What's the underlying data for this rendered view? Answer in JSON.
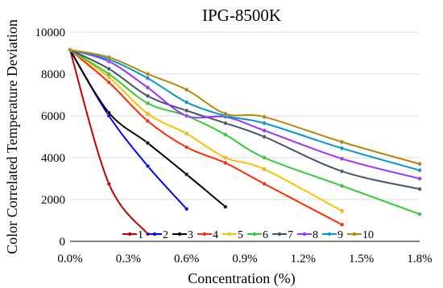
{
  "chart_data": {
    "type": "line",
    "title": "IPG-8500K",
    "xlabel": "Concentration (%)",
    "ylabel": "Color Correlated Temperature Deviation",
    "xlim": [
      0,
      1.8
    ],
    "ylim": [
      0,
      10000
    ],
    "x_ticks": [
      0,
      0.3,
      0.6,
      0.9,
      1.2,
      1.5,
      1.8
    ],
    "x_tick_labels": [
      "0.0%",
      "0.3%",
      "0.6%",
      "0.9%",
      "1.2%",
      "1.5%",
      "1.8%"
    ],
    "y_ticks": [
      0,
      2000,
      4000,
      6000,
      8000,
      10000
    ],
    "y_tick_labels": [
      "0",
      "2000",
      "4000",
      "6000",
      "8000",
      "10000"
    ],
    "grid": "horizontal",
    "legend_position": "bottom-inside",
    "series": [
      {
        "name": "1",
        "color": "#c00000",
        "x": [
          0,
          0.2,
          0.4
        ],
        "y": [
          9150,
          2750,
          350
        ]
      },
      {
        "name": "2",
        "color": "#0000ff",
        "x": [
          0,
          0.2,
          0.4,
          0.6
        ],
        "y": [
          9150,
          6000,
          3600,
          1550
        ]
      },
      {
        "name": "3",
        "color": "#000000",
        "x": [
          0,
          0.2,
          0.4,
          0.6,
          0.8
        ],
        "y": [
          9150,
          6150,
          4700,
          3200,
          1650
        ]
      },
      {
        "name": "4",
        "color": "#ff2a00",
        "x": [
          0,
          0.2,
          0.4,
          0.6,
          0.8,
          1.0,
          1.4
        ],
        "y": [
          9150,
          7600,
          5750,
          4500,
          3750,
          2750,
          800
        ]
      },
      {
        "name": "5",
        "color": "#ffc000",
        "x": [
          0,
          0.2,
          0.4,
          0.6,
          0.8,
          1.0,
          1.4
        ],
        "y": [
          9150,
          7850,
          6100,
          5150,
          4000,
          3450,
          1450
        ]
      },
      {
        "name": "6",
        "color": "#33cc33",
        "x": [
          0,
          0.2,
          0.4,
          0.6,
          0.8,
          1.0,
          1.4,
          1.8
        ],
        "y": [
          9150,
          8000,
          6600,
          6000,
          5100,
          4000,
          2650,
          1300
        ]
      },
      {
        "name": "7",
        "color": "#44546a",
        "x": [
          0,
          0.2,
          0.4,
          0.6,
          0.8,
          1.0,
          1.4,
          1.8
        ],
        "y": [
          9150,
          8250,
          6950,
          6250,
          5650,
          5000,
          3350,
          2500
        ]
      },
      {
        "name": "8",
        "color": "#9933ff",
        "x": [
          0,
          0.2,
          0.4,
          0.6,
          0.8,
          1.0,
          1.4,
          1.8
        ],
        "y": [
          9150,
          8600,
          7350,
          6000,
          5950,
          5300,
          3950,
          3000
        ]
      },
      {
        "name": "9",
        "color": "#0099cc",
        "x": [
          0,
          0.2,
          0.4,
          0.6,
          0.8,
          1.0,
          1.4,
          1.8
        ],
        "y": [
          9150,
          8700,
          7800,
          6650,
          6000,
          5650,
          4450,
          3400
        ]
      },
      {
        "name": "10",
        "color": "#b8860b",
        "x": [
          0,
          0.2,
          0.4,
          0.6,
          0.8,
          1.0,
          1.4,
          1.8
        ],
        "y": [
          9150,
          8800,
          8000,
          7250,
          6100,
          5950,
          4750,
          3700
        ]
      }
    ]
  }
}
